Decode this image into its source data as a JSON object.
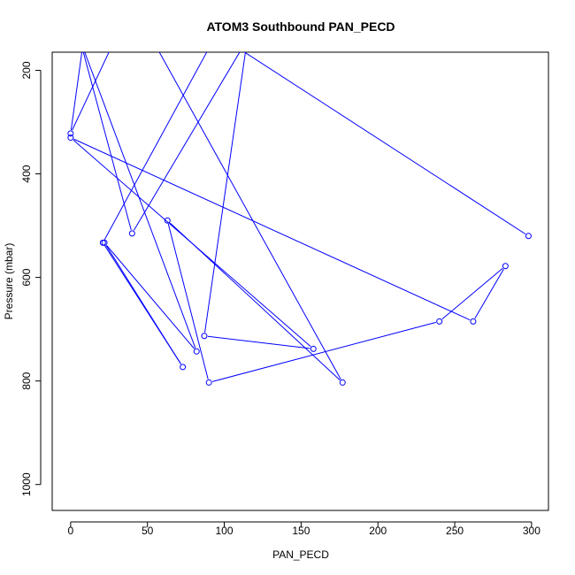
{
  "chart_data": {
    "type": "line",
    "title": "ATOM3 Southbound PAN_PECD",
    "xlabel": "PAN_PECD",
    "ylabel": "Pressure (mbar)",
    "xlim": [
      -12,
      311
    ],
    "ylim": [
      1050,
      165
    ],
    "y_reversed": true,
    "x_ticks": [
      0,
      50,
      100,
      150,
      200,
      250,
      300
    ],
    "y_ticks": [
      200,
      400,
      600,
      800,
      1000
    ],
    "grid": false,
    "legend": "none",
    "colors": {
      "series": "#0000ff",
      "axes": "#000000",
      "background": "#ffffff"
    },
    "series": [
      {
        "marker": "open-circle",
        "x": [
          298,
          95,
          21,
          73,
          22,
          82,
          6,
          40,
          115,
          87,
          158,
          0,
          262,
          283,
          240,
          90,
          63,
          177,
          40,
          0,
          8
        ],
        "y": [
          520,
          130,
          533,
          773,
          533,
          743,
          140,
          515,
          140,
          713,
          738,
          330,
          685,
          578,
          685,
          803,
          490,
          803,
          70,
          322,
          150
        ]
      }
    ]
  }
}
